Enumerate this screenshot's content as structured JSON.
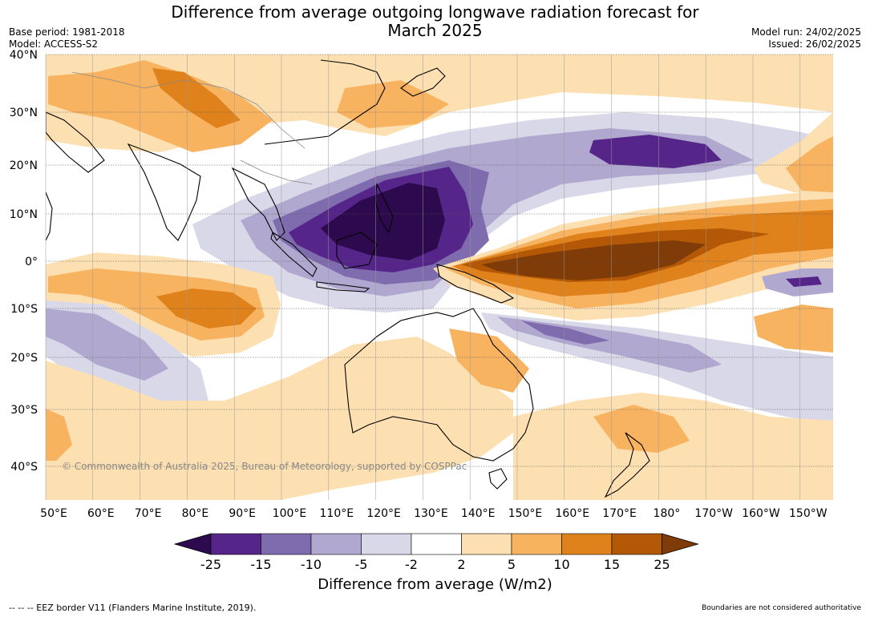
{
  "title_line1": "Difference from average outgoing longwave radiation forecast for",
  "title_line2": "March 2025",
  "meta_left": [
    "Base period: 1981-2018",
    "Model: ACCESS-S2"
  ],
  "meta_right": [
    "Model run: 24/02/2025",
    "Issued: 26/02/2025"
  ],
  "lat_labels": [
    "40°N",
    "30°N",
    "20°N",
    "10°N",
    "0°",
    "10°S",
    "20°S",
    "30°S",
    "40°S"
  ],
  "lon_labels": [
    "50°E",
    "60°E",
    "70°E",
    "80°E",
    "90°E",
    "100°E",
    "110°E",
    "120°E",
    "130°E",
    "140°E",
    "150°E",
    "160°E",
    "170°E",
    "180°",
    "170°W",
    "160°W",
    "150°W"
  ],
  "copyright": "© Commonwealth of Australia 2025, Bureau of Meteorology, supported by COSPPac",
  "colorbar": {
    "title": "Difference from average (W/m2)",
    "ticks": [
      "-25",
      "-15",
      "-10",
      "-5",
      "-2",
      "2",
      "5",
      "10",
      "15",
      "25"
    ],
    "colors": [
      "#2d0a4e",
      "#55258a",
      "#7f6cae",
      "#b1a8d0",
      "#d9d8e9",
      "#ffffff",
      "#fde0b2",
      "#f8b361",
      "#e0821c",
      "#b35806",
      "#7f3b08"
    ]
  },
  "footer_left": "--  --  -- EEZ border V11 (Flanders Marine Institute, 2019).",
  "footer_right": "Boundaries are not considered authoritative"
}
